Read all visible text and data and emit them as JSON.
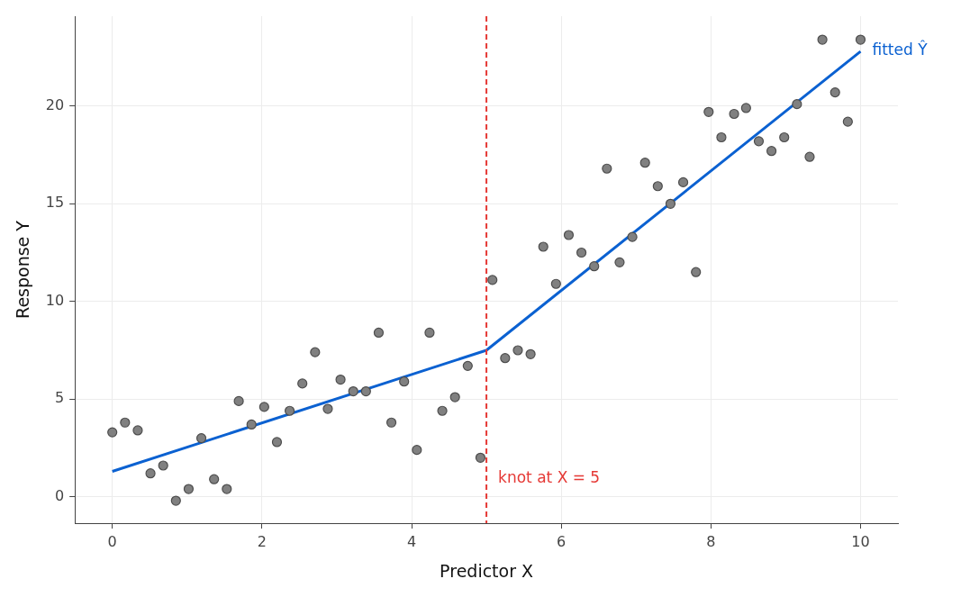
{
  "chart_data": {
    "type": "scatter",
    "xlabel": "Predictor X",
    "ylabel": "Response Y",
    "xlim": [
      -0.5,
      10.5
    ],
    "ylim": [
      -1.35,
      24.6
    ],
    "xticks": [
      0,
      2,
      4,
      6,
      8,
      10
    ],
    "yticks": [
      0,
      5,
      10,
      15,
      20
    ],
    "grid": true,
    "series": [
      {
        "marker": "circle",
        "color": "#808080",
        "x": [
          0,
          0.17,
          0.34,
          0.51,
          0.68,
          0.85,
          1.02,
          1.19,
          1.36,
          1.53,
          1.69,
          1.86,
          2.03,
          2.2,
          2.37,
          2.54,
          2.71,
          2.88,
          3.05,
          3.22,
          3.39,
          3.56,
          3.73,
          3.9,
          4.07,
          4.24,
          4.41,
          4.58,
          4.75,
          4.92,
          5.08,
          5.25,
          5.42,
          5.59,
          5.76,
          5.93,
          6.1,
          6.27,
          6.44,
          6.61,
          6.78,
          6.95,
          7.12,
          7.29,
          7.46,
          7.63,
          7.8,
          7.97,
          8.14,
          8.31,
          8.47,
          8.64,
          8.81,
          8.98,
          9.15,
          9.32,
          9.49,
          9.66,
          9.83,
          10
        ],
        "values": [
          3.3,
          3.8,
          3.4,
          1.2,
          1.6,
          -0.2,
          0.4,
          3.0,
          0.9,
          0.4,
          4.9,
          3.7,
          4.6,
          2.8,
          4.4,
          5.8,
          7.4,
          4.5,
          6.0,
          5.4,
          5.4,
          8.4,
          3.8,
          5.9,
          2.4,
          8.4,
          4.4,
          5.1,
          6.7,
          2.0,
          11.1,
          7.1,
          7.5,
          7.3,
          12.8,
          10.9,
          13.4,
          12.5,
          11.8,
          16.8,
          12.0,
          13.3,
          17.1,
          15.9,
          15.0,
          16.1,
          11.5,
          19.7,
          18.4,
          19.6,
          19.9,
          18.2,
          17.7,
          18.4,
          20.1,
          17.4,
          23.4,
          20.7,
          19.2,
          23.4
        ]
      },
      {
        "type": "line",
        "marker": "none",
        "name": "fitted Ŷ",
        "color": "#0b61d1",
        "x": [
          0,
          5,
          10
        ],
        "values": [
          1.3,
          7.5,
          22.8
        ]
      }
    ],
    "ref_lines": [
      {
        "axis": "x",
        "value": 5,
        "label": "knot at X = 5",
        "color": "#e53935",
        "line_style": "dashed"
      }
    ]
  }
}
